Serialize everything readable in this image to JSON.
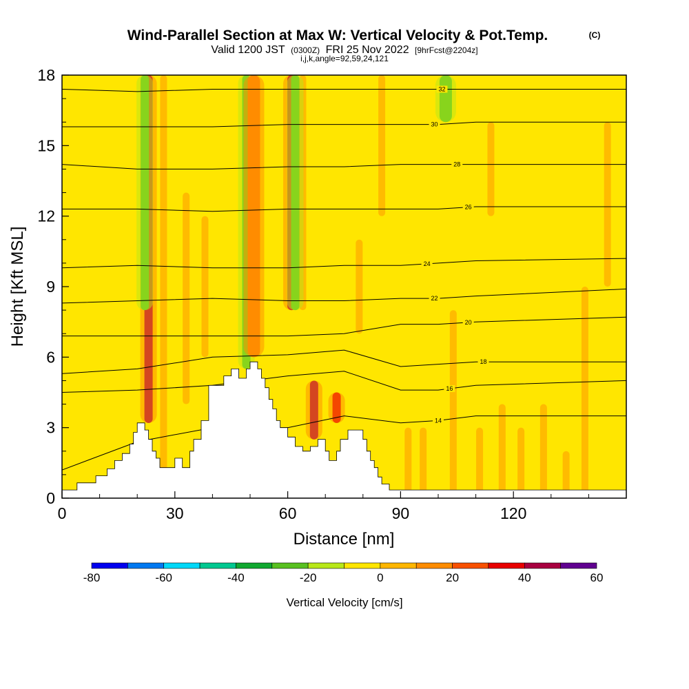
{
  "title": "Wind-Parallel Section at Max W: Vertical Velocity & Pot.Temp.",
  "title_units": "(C)",
  "subtitle": {
    "a": "Valid 1200 JST",
    "b": "(0300Z)",
    "c": "FRI 25 Nov 2022",
    "d": "[9hrFcst@2204z]"
  },
  "subtitle2": "i,j,k,angle=92,59,24,121",
  "chart_data": {
    "type": "heatmap",
    "description_axes": {
      "xlabel": "Distance [nm]",
      "ylabel": "Height [Kft MSL]",
      "xlim": [
        0,
        150
      ],
      "ylim": [
        0,
        18
      ],
      "xticks": [
        0,
        30,
        60,
        90,
        120
      ],
      "yticks": [
        0,
        3,
        6,
        9,
        12,
        15,
        18
      ]
    },
    "colorbar": {
      "label": "Vertical Velocity [cm/s]",
      "ticks": [
        -80,
        -60,
        -40,
        -20,
        0,
        20,
        40,
        60
      ],
      "bins": [
        {
          "from": -80,
          "to": -70,
          "color": "#0000ee"
        },
        {
          "from": -70,
          "to": -60,
          "color": "#0078f0"
        },
        {
          "from": -60,
          "to": -50,
          "color": "#00d8f8"
        },
        {
          "from": -50,
          "to": -40,
          "color": "#00c890"
        },
        {
          "from": -40,
          "to": -30,
          "color": "#10a830"
        },
        {
          "from": -30,
          "to": -20,
          "color": "#58c020"
        },
        {
          "from": -20,
          "to": -10,
          "color": "#b8e818"
        },
        {
          "from": -10,
          "to": 0,
          "color": "#ffe600"
        },
        {
          "from": 0,
          "to": 10,
          "color": "#ffb600"
        },
        {
          "from": 10,
          "to": 20,
          "color": "#ff8c00"
        },
        {
          "from": 20,
          "to": 30,
          "color": "#f85000"
        },
        {
          "from": 30,
          "to": 40,
          "color": "#e80000"
        },
        {
          "from": 40,
          "to": 50,
          "color": "#a80040"
        },
        {
          "from": 50,
          "to": 60,
          "color": "#600090"
        }
      ]
    },
    "vertical_velocity_features": [
      {
        "x": 23,
        "ymin": 3.2,
        "ymax": 18,
        "w": 40,
        "kind": "updraft"
      },
      {
        "x": 22,
        "ymin": 8,
        "ymax": 18,
        "w": -30,
        "kind": "downdraft"
      },
      {
        "x": 49,
        "ymin": 5.5,
        "ymax": 18,
        "w": -30,
        "kind": "downdraft"
      },
      {
        "x": 51,
        "ymin": 6,
        "ymax": 18,
        "w": 15,
        "kind": "updraft"
      },
      {
        "x": 61,
        "ymin": 8,
        "ymax": 18,
        "w": 40,
        "kind": "updraft"
      },
      {
        "x": 62,
        "ymin": 8,
        "ymax": 18,
        "w": -30,
        "kind": "downdraft"
      },
      {
        "x": 67,
        "ymin": 2.5,
        "ymax": 5,
        "w": 40,
        "kind": "updraft"
      },
      {
        "x": 73,
        "ymin": 3.2,
        "ymax": 4.5,
        "w": 35,
        "kind": "updraft"
      },
      {
        "x": 102,
        "ymin": 16,
        "ymax": 18,
        "w": -25,
        "kind": "downdraft"
      }
    ],
    "theta_contours": [
      {
        "value": 14,
        "label_x": 100,
        "y_at_x": [
          [
            0,
            1.2
          ],
          [
            20,
            2.4
          ],
          [
            40,
            3.0
          ],
          [
            60,
            3.0
          ],
          [
            75,
            3.5
          ],
          [
            90,
            3.2
          ],
          [
            100,
            3.3
          ],
          [
            110,
            3.5
          ],
          [
            150,
            3.5
          ]
        ]
      },
      {
        "value": 16,
        "label_x": 103,
        "y_at_x": [
          [
            0,
            4.5
          ],
          [
            20,
            4.6
          ],
          [
            40,
            4.8
          ],
          [
            60,
            5.2
          ],
          [
            75,
            5.4
          ],
          [
            90,
            4.6
          ],
          [
            100,
            4.6
          ],
          [
            110,
            4.8
          ],
          [
            150,
            5.0
          ]
        ]
      },
      {
        "value": 18,
        "label_x": 112,
        "y_at_x": [
          [
            0,
            5.3
          ],
          [
            20,
            5.5
          ],
          [
            40,
            6.0
          ],
          [
            60,
            6.1
          ],
          [
            75,
            6.3
          ],
          [
            90,
            5.6
          ],
          [
            100,
            5.7
          ],
          [
            110,
            5.8
          ],
          [
            150,
            5.8
          ]
        ]
      },
      {
        "value": 20,
        "label_x": 108,
        "y_at_x": [
          [
            0,
            6.9
          ],
          [
            20,
            6.9
          ],
          [
            40,
            6.9
          ],
          [
            60,
            6.9
          ],
          [
            75,
            7.0
          ],
          [
            90,
            7.4
          ],
          [
            100,
            7.4
          ],
          [
            110,
            7.5
          ],
          [
            150,
            7.7
          ]
        ]
      },
      {
        "value": 22,
        "label_x": 99,
        "y_at_x": [
          [
            0,
            8.3
          ],
          [
            20,
            8.4
          ],
          [
            40,
            8.5
          ],
          [
            60,
            8.4
          ],
          [
            75,
            8.4
          ],
          [
            90,
            8.5
          ],
          [
            100,
            8.5
          ],
          [
            110,
            8.6
          ],
          [
            150,
            8.9
          ]
        ]
      },
      {
        "value": 24,
        "label_x": 97,
        "y_at_x": [
          [
            0,
            9.8
          ],
          [
            20,
            9.9
          ],
          [
            40,
            9.8
          ],
          [
            60,
            9.8
          ],
          [
            75,
            9.9
          ],
          [
            90,
            9.9
          ],
          [
            100,
            10.0
          ],
          [
            110,
            10.1
          ],
          [
            150,
            10.2
          ]
        ]
      },
      {
        "value": 26,
        "label_x": 108,
        "y_at_x": [
          [
            0,
            12.3
          ],
          [
            20,
            12.3
          ],
          [
            40,
            12.2
          ],
          [
            60,
            12.3
          ],
          [
            75,
            12.3
          ],
          [
            90,
            12.3
          ],
          [
            100,
            12.3
          ],
          [
            110,
            12.4
          ],
          [
            150,
            12.4
          ]
        ]
      },
      {
        "value": 28,
        "label_x": 105,
        "y_at_x": [
          [
            0,
            14.2
          ],
          [
            20,
            14.0
          ],
          [
            40,
            14.0
          ],
          [
            60,
            14.1
          ],
          [
            75,
            14.1
          ],
          [
            90,
            14.2
          ],
          [
            100,
            14.2
          ],
          [
            110,
            14.2
          ],
          [
            150,
            14.2
          ]
        ]
      },
      {
        "value": 30,
        "label_x": 99,
        "y_at_x": [
          [
            0,
            15.8
          ],
          [
            20,
            15.8
          ],
          [
            40,
            15.8
          ],
          [
            60,
            15.9
          ],
          [
            75,
            15.9
          ],
          [
            90,
            15.9
          ],
          [
            100,
            15.9
          ],
          [
            110,
            16.0
          ],
          [
            150,
            16.0
          ]
        ]
      },
      {
        "value": 32,
        "label_x": 101,
        "y_at_x": [
          [
            0,
            17.4
          ],
          [
            20,
            17.3
          ],
          [
            40,
            17.4
          ],
          [
            60,
            17.4
          ],
          [
            75,
            17.4
          ],
          [
            90,
            17.4
          ],
          [
            100,
            17.4
          ],
          [
            110,
            17.4
          ],
          [
            150,
            17.4
          ]
        ]
      }
    ],
    "terrain_height": [
      [
        0,
        0.35
      ],
      [
        4,
        0.35
      ],
      [
        4,
        0.65
      ],
      [
        9,
        0.65
      ],
      [
        9,
        0.95
      ],
      [
        12,
        0.95
      ],
      [
        12,
        1.25
      ],
      [
        14,
        1.25
      ],
      [
        14,
        1.6
      ],
      [
        16,
        1.6
      ],
      [
        16,
        1.9
      ],
      [
        18,
        1.9
      ],
      [
        18,
        2.3
      ],
      [
        19,
        2.3
      ],
      [
        19,
        2.8
      ],
      [
        20,
        2.8
      ],
      [
        20,
        3.2
      ],
      [
        22,
        3.2
      ],
      [
        22,
        2.9
      ],
      [
        23,
        2.9
      ],
      [
        23,
        2.5
      ],
      [
        24,
        2.5
      ],
      [
        24,
        2.0
      ],
      [
        25,
        2.0
      ],
      [
        25,
        1.7
      ],
      [
        26,
        1.7
      ],
      [
        26,
        1.3
      ],
      [
        30,
        1.3
      ],
      [
        30,
        1.7
      ],
      [
        32,
        1.7
      ],
      [
        32,
        1.3
      ],
      [
        34,
        1.3
      ],
      [
        34,
        2.0
      ],
      [
        35,
        2.0
      ],
      [
        35,
        2.5
      ],
      [
        37,
        2.5
      ],
      [
        37,
        3.3
      ],
      [
        39,
        3.3
      ],
      [
        39,
        4.8
      ],
      [
        43,
        4.8
      ],
      [
        43,
        5.2
      ],
      [
        45,
        5.2
      ],
      [
        45,
        5.5
      ],
      [
        47,
        5.5
      ],
      [
        47,
        5.1
      ],
      [
        49,
        5.1
      ],
      [
        49,
        5.5
      ],
      [
        50,
        5.5
      ],
      [
        50,
        5.8
      ],
      [
        52,
        5.8
      ],
      [
        52,
        5.5
      ],
      [
        53,
        5.5
      ],
      [
        53,
        5.1
      ],
      [
        54,
        5.1
      ],
      [
        54,
        4.7
      ],
      [
        55,
        4.7
      ],
      [
        55,
        4.2
      ],
      [
        56,
        4.2
      ],
      [
        56,
        3.8
      ],
      [
        57,
        3.8
      ],
      [
        57,
        3.3
      ],
      [
        58,
        3.3
      ],
      [
        58,
        3.0
      ],
      [
        60,
        3.0
      ],
      [
        60,
        2.6
      ],
      [
        62,
        2.6
      ],
      [
        62,
        2.2
      ],
      [
        64,
        2.2
      ],
      [
        64,
        2.0
      ],
      [
        66,
        2.0
      ],
      [
        66,
        2.2
      ],
      [
        68,
        2.2
      ],
      [
        68,
        2.5
      ],
      [
        70,
        2.5
      ],
      [
        70,
        2.0
      ],
      [
        71,
        2.0
      ],
      [
        71,
        1.6
      ],
      [
        73,
        1.6
      ],
      [
        73,
        2.0
      ],
      [
        74,
        2.0
      ],
      [
        74,
        2.5
      ],
      [
        76,
        2.5
      ],
      [
        76,
        2.9
      ],
      [
        80,
        2.9
      ],
      [
        80,
        2.5
      ],
      [
        81,
        2.5
      ],
      [
        81,
        2.0
      ],
      [
        82,
        2.0
      ],
      [
        82,
        1.6
      ],
      [
        83,
        1.6
      ],
      [
        83,
        1.3
      ],
      [
        84,
        1.3
      ],
      [
        84,
        0.9
      ],
      [
        85,
        0.9
      ],
      [
        85,
        0.6
      ],
      [
        87,
        0.6
      ],
      [
        87,
        0.35
      ],
      [
        150,
        0.35
      ]
    ]
  }
}
